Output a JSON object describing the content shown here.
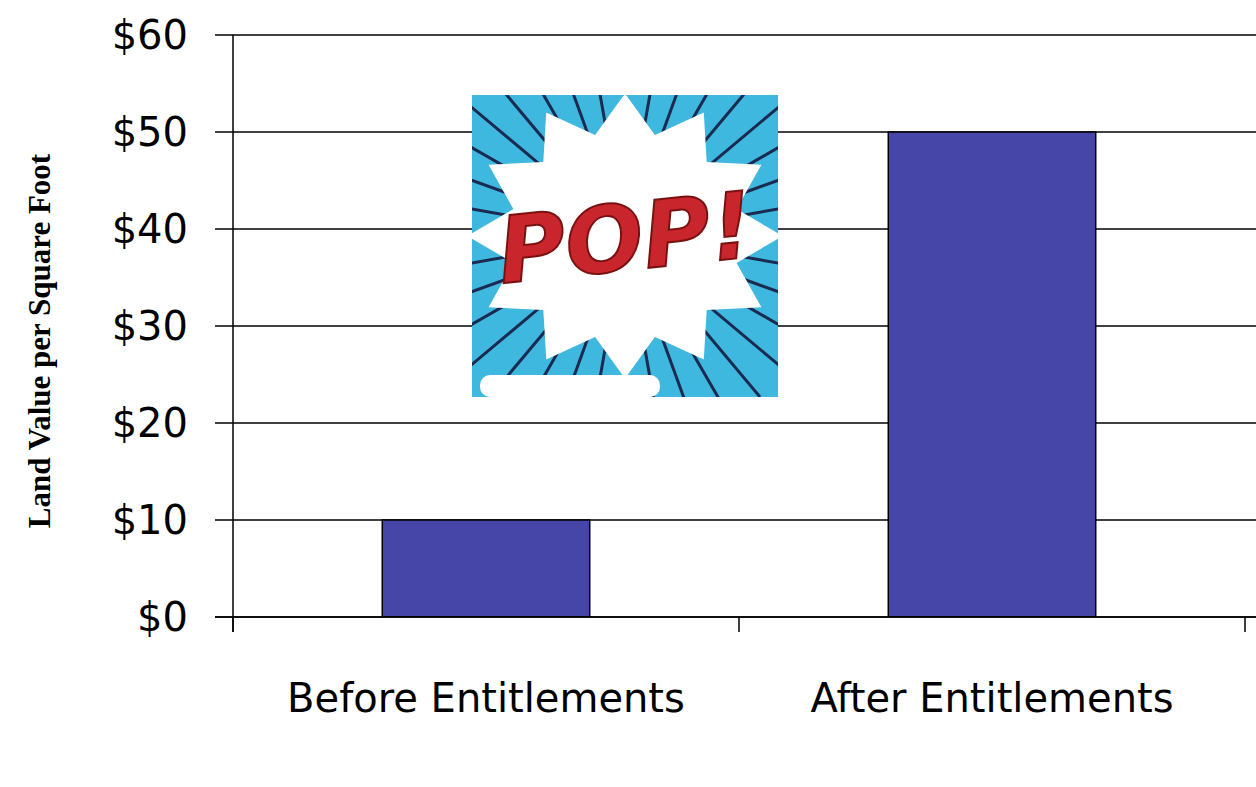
{
  "chart_data": {
    "type": "bar",
    "y_label": "Land Value per Square Foot",
    "categories": [
      "Before Entitlements",
      "After Entitlements"
    ],
    "values": [
      10,
      50
    ],
    "color": "#4646a8",
    "ylim": [
      0,
      60
    ],
    "yticks": [
      {
        "value": 0,
        "label": "$0"
      },
      {
        "value": 10,
        "label": "$10"
      },
      {
        "value": 20,
        "label": "$20"
      },
      {
        "value": 30,
        "label": "$30"
      },
      {
        "value": 40,
        "label": "$40"
      },
      {
        "value": 50,
        "label": "$50"
      },
      {
        "value": 60,
        "label": "$60"
      }
    ],
    "grid": true,
    "annotations": [
      "POP!"
    ]
  }
}
